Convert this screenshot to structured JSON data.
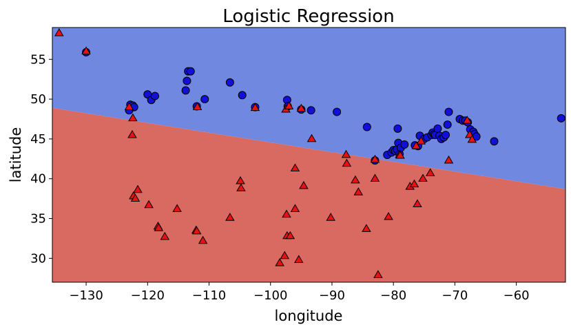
{
  "chart_data": {
    "type": "scatter",
    "title": "Logistic Regression",
    "xlabel": "longitude",
    "ylabel": "latitude",
    "xlim": [
      -135.5,
      -52
    ],
    "ylim": [
      27,
      59
    ],
    "xticks": [
      -130,
      -120,
      -110,
      -100,
      -90,
      -80,
      -70,
      -60
    ],
    "yticks": [
      30,
      35,
      40,
      45,
      50,
      55
    ],
    "xtick_labels": [
      "−130",
      "−120",
      "−110",
      "−100",
      "−90",
      "−80",
      "−70",
      "−60"
    ],
    "ytick_labels": [
      "30",
      "35",
      "40",
      "45",
      "50",
      "55"
    ],
    "grid": false,
    "legend": false,
    "decision_boundary": {
      "line": [
        [
          -135.5,
          48.9
        ],
        [
          -52,
          38.7
        ]
      ],
      "upper_region_color": "#7088e0",
      "lower_region_color": "#d86a62"
    },
    "series": [
      {
        "marker": "circle",
        "color": "#1010d8",
        "points": [
          [
            -130,
            55.9
          ],
          [
            -123,
            48.6
          ],
          [
            -122.8,
            49.3
          ],
          [
            -122.4,
            49.2
          ],
          [
            -122.2,
            49
          ],
          [
            -120,
            50.6
          ],
          [
            -119.4,
            49.9
          ],
          [
            -118.8,
            50.4
          ],
          [
            -113.8,
            51.1
          ],
          [
            -113.6,
            52.3
          ],
          [
            -113.4,
            53.5
          ],
          [
            -113,
            53.5
          ],
          [
            -112,
            49.1
          ],
          [
            -110.7,
            50
          ],
          [
            -106.6,
            52.1
          ],
          [
            -104.6,
            50.5
          ],
          [
            -102.5,
            49
          ],
          [
            -97.3,
            49.9
          ],
          [
            -97.2,
            49.1
          ],
          [
            -95,
            48.7
          ],
          [
            -93.4,
            48.6
          ],
          [
            -89.2,
            48.4
          ],
          [
            -84.3,
            46.5
          ],
          [
            -83,
            42.3
          ],
          [
            -81,
            43
          ],
          [
            -80.3,
            43.3
          ],
          [
            -80,
            43.6
          ],
          [
            -79.7,
            43.5
          ],
          [
            -79.4,
            43.7
          ],
          [
            -79.2,
            44.5
          ],
          [
            -79.3,
            46.3
          ],
          [
            -79,
            43.1
          ],
          [
            -78.8,
            43.9
          ],
          [
            -78.2,
            44.3
          ],
          [
            -76.5,
            44.2
          ],
          [
            -76,
            44.1
          ],
          [
            -75.7,
            45.4
          ],
          [
            -75,
            45
          ],
          [
            -74.5,
            45.2
          ],
          [
            -73.8,
            45.5
          ],
          [
            -73.6,
            45.8
          ],
          [
            -73.4,
            45.6
          ],
          [
            -73.2,
            45.5
          ],
          [
            -72.8,
            46.3
          ],
          [
            -72.5,
            45.4
          ],
          [
            -72.2,
            45
          ],
          [
            -71.8,
            45.2
          ],
          [
            -71.5,
            45.5
          ],
          [
            -71.2,
            46.8
          ],
          [
            -71,
            48.4
          ],
          [
            -69.2,
            47.5
          ],
          [
            -68.7,
            47.3
          ],
          [
            -68.3,
            47.3
          ],
          [
            -67.9,
            47.1
          ],
          [
            -67.5,
            46.2
          ],
          [
            -67,
            45.9
          ],
          [
            -66.8,
            45.6
          ],
          [
            -66.5,
            45.3
          ],
          [
            -63.6,
            44.7
          ],
          [
            -52.7,
            47.6
          ]
        ]
      },
      {
        "marker": "triangle",
        "color": "#e81010",
        "points": [
          [
            -134.4,
            58.3
          ],
          [
            -130,
            56
          ],
          [
            -123,
            49
          ],
          [
            -122.4,
            47.6
          ],
          [
            -122.5,
            45.5
          ],
          [
            -122.3,
            37.8
          ],
          [
            -122,
            37.5
          ],
          [
            -121.6,
            38.6
          ],
          [
            -119.8,
            36.7
          ],
          [
            -118.3,
            34
          ],
          [
            -118.2,
            33.8
          ],
          [
            -117.2,
            32.7
          ],
          [
            -115.2,
            36.2
          ],
          [
            -112.1,
            33.5
          ],
          [
            -112,
            33.4
          ],
          [
            -111.9,
            49
          ],
          [
            -111,
            32.2
          ],
          [
            -106.6,
            35.1
          ],
          [
            -104.9,
            39.7
          ],
          [
            -104.8,
            38.8
          ],
          [
            -102.5,
            48.9
          ],
          [
            -97.5,
            48.7
          ],
          [
            -97.4,
            35.5
          ],
          [
            -97.3,
            32.8
          ],
          [
            -97,
            49.1
          ],
          [
            -96.8,
            32.8
          ],
          [
            -97.7,
            30.3
          ],
          [
            -98.5,
            29.4
          ],
          [
            -96,
            41.3
          ],
          [
            -96,
            36.2
          ],
          [
            -95.4,
            29.8
          ],
          [
            -94.6,
            39.1
          ],
          [
            -95,
            48.8
          ],
          [
            -93.3,
            45
          ],
          [
            -90.2,
            35.1
          ],
          [
            -87.6,
            41.9
          ],
          [
            -87.7,
            43
          ],
          [
            -86.2,
            39.8
          ],
          [
            -85.7,
            38.3
          ],
          [
            -84.4,
            33.7
          ],
          [
            -83,
            42.4
          ],
          [
            -83,
            40
          ],
          [
            -82.5,
            27.9
          ],
          [
            -80.8,
            35.2
          ],
          [
            -79,
            43
          ],
          [
            -78.9,
            42.9
          ],
          [
            -77.3,
            39
          ],
          [
            -76.6,
            39.3
          ],
          [
            -76.1,
            36.8
          ],
          [
            -75.2,
            40
          ],
          [
            -75.5,
            44.7
          ],
          [
            -74,
            40.7
          ],
          [
            -76.3,
            44.1
          ],
          [
            -71,
            42.3
          ],
          [
            -68,
            47.3
          ],
          [
            -67.6,
            45.5
          ],
          [
            -67.2,
            44.9
          ]
        ]
      }
    ]
  }
}
